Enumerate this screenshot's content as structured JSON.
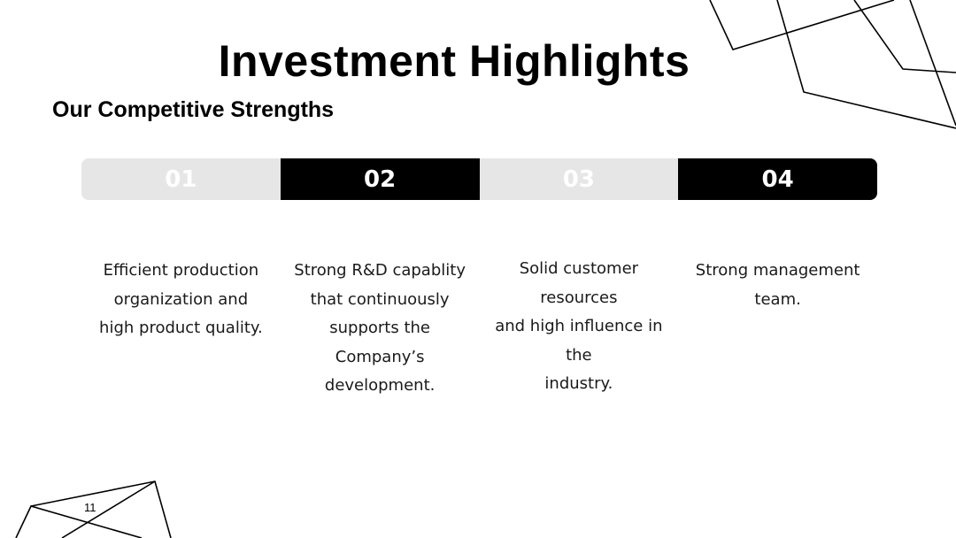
{
  "slide": {
    "title": "Investment Highlights",
    "subtitle": "Our Competitive Strengths",
    "page_number": "11"
  },
  "tabs": [
    {
      "number": "01"
    },
    {
      "number": "02"
    },
    {
      "number": "03"
    },
    {
      "number": "04"
    }
  ],
  "strengths": [
    {
      "lines": [
        "Efficient production",
        "organization and",
        "high product quality."
      ]
    },
    {
      "lines": [
        "Strong R&D capablity",
        "that continuously",
        "supports the",
        "Company’s",
        "development."
      ]
    },
    {
      "lines": [
        "Solid customer resources",
        "and high influence in the",
        "industry."
      ]
    },
    {
      "lines": [
        "Strong management",
        "team."
      ]
    }
  ],
  "colors": {
    "tab_light": "#e6e6e6",
    "tab_dark": "#000000",
    "background": "#ffffff"
  }
}
